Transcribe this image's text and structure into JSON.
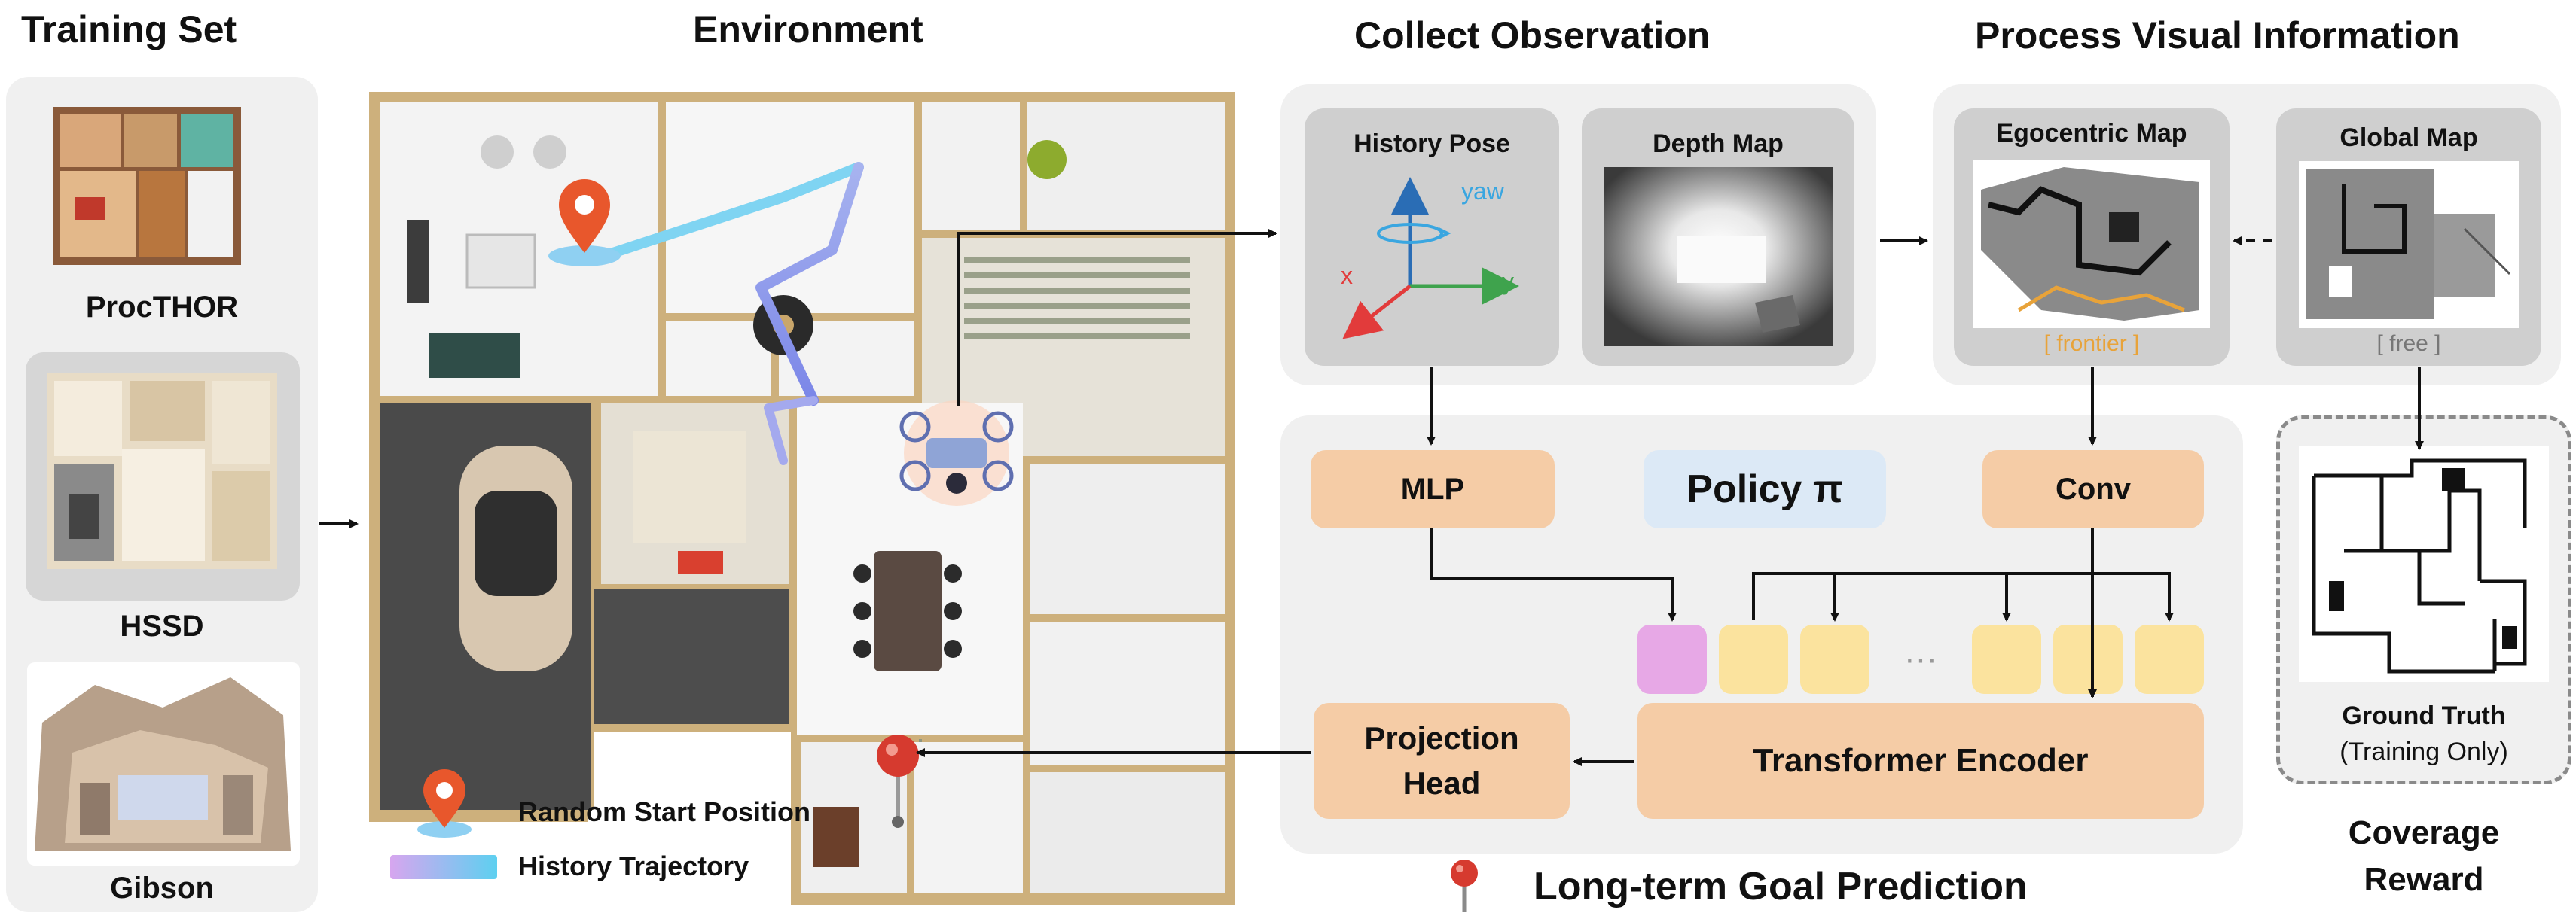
{
  "titles": {
    "training_set": "Training Set",
    "environment": "Environment",
    "collect_observation": "Collect Observation",
    "process_visual": "Process Visual Information"
  },
  "training_sets": [
    "ProcTHOR",
    "HSSD",
    "Gibson"
  ],
  "observation": {
    "history_pose": "History Pose",
    "depth_map": "Depth Map",
    "axes": {
      "x": "x",
      "y": "y",
      "yaw": "yaw"
    }
  },
  "visual": {
    "egocentric_map": "Egocentric Map",
    "egocentric_tag": "[ frontier ]",
    "global_map": "Global Map",
    "global_tag": "[ free ]"
  },
  "policy": {
    "mlp": "MLP",
    "title": "Policy π",
    "conv": "Conv",
    "projection_head": "Projection Head",
    "transformer": "Transformer Encoder",
    "ellipsis": "···"
  },
  "ground_truth": {
    "title": "Ground Truth",
    "subtitle": "(Training Only)"
  },
  "coverage_reward": "Coverage Reward",
  "legend": {
    "start": "Random Start Position",
    "trajectory": "History Trajectory"
  },
  "goal_prediction": "Long-term Goal Prediction",
  "colors": {
    "panel": "#f0f0f0",
    "subpanel": "#cfcfcf",
    "peach": "#f5cca6",
    "token": "#fbe39e",
    "token_pose": "#e7a8e6",
    "policy_bg": "#dce9f6",
    "frontier": "#e8a33a",
    "start_marker": "#e8572c",
    "trajectory": "#57c8ee"
  }
}
